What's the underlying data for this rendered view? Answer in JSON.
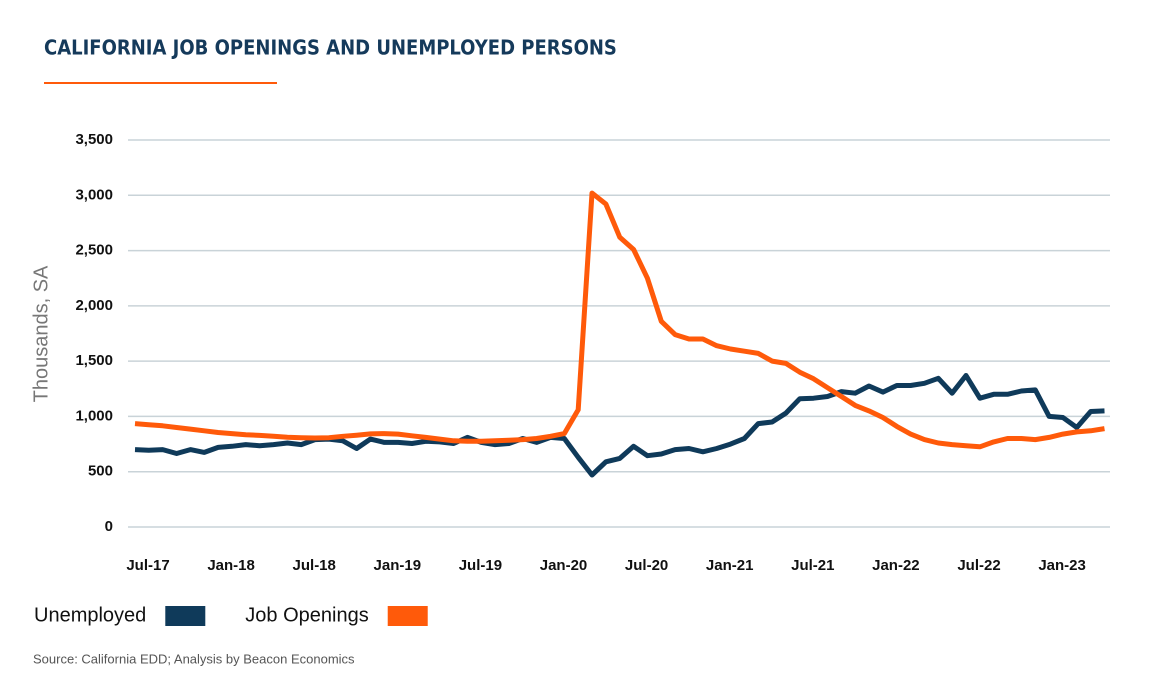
{
  "chart_data": {
    "type": "line",
    "title": "CALIFORNIA JOB OPENINGS AND UNEMPLOYED PERSONS",
    "y_label": "Thousands, SA",
    "source": "Source: California EDD; Analysis by Beacon Economics",
    "categories": [
      "Jul-17",
      null,
      null,
      null,
      null,
      null,
      "Jan-18",
      null,
      null,
      null,
      null,
      null,
      "Jul-18",
      null,
      null,
      null,
      null,
      null,
      "Jan-19",
      null,
      null,
      null,
      null,
      null,
      "Jul-19",
      null,
      null,
      null,
      null,
      null,
      "Jan-20",
      null,
      null,
      null,
      null,
      null,
      "Jul-20",
      null,
      null,
      null,
      null,
      null,
      "Jan-21",
      null,
      null,
      null,
      null,
      null,
      "Jul-21",
      null,
      null,
      null,
      null,
      null,
      "Jan-22",
      null,
      null,
      null,
      null,
      null,
      "Jul-22",
      null,
      null,
      null,
      null,
      null,
      "Jan-23",
      null,
      null,
      null,
      null
    ],
    "series": [
      {
        "name": "Unemployed",
        "color": "#0f3a5a",
        "values": [
          700,
          695,
          700,
          665,
          700,
          675,
          720,
          730,
          745,
          735,
          745,
          760,
          745,
          790,
          795,
          780,
          710,
          795,
          765,
          765,
          755,
          775,
          770,
          755,
          810,
          765,
          745,
          755,
          800,
          765,
          810,
          800,
          630,
          470,
          590,
          620,
          730,
          645,
          660,
          700,
          710,
          680,
          710,
          750,
          800,
          935,
          950,
          1030,
          1160,
          1165,
          1180,
          1225,
          1210,
          1275,
          1220,
          1280,
          1280,
          1300,
          1345,
          1210,
          1370,
          1165,
          1200,
          1200,
          1230,
          1240,
          1000,
          990,
          900,
          1045,
          1050
        ]
      },
      {
        "name": "Job Openings",
        "color": "#ff5a0a",
        "values": [
          935,
          925,
          915,
          900,
          885,
          870,
          855,
          845,
          835,
          828,
          820,
          812,
          808,
          805,
          808,
          820,
          830,
          842,
          845,
          840,
          825,
          810,
          795,
          780,
          775,
          775,
          780,
          785,
          790,
          800,
          820,
          845,
          1060,
          3020,
          2920,
          2620,
          2510,
          2250,
          1860,
          1740,
          1700,
          1700,
          1640,
          1610,
          1590,
          1570,
          1500,
          1480,
          1400,
          1340,
          1260,
          1180,
          1100,
          1050,
          990,
          910,
          840,
          790,
          760,
          745,
          735,
          725,
          770,
          800,
          800,
          790,
          810,
          840,
          860,
          870,
          890
        ]
      }
    ],
    "ylim": [
      0,
      3500
    ],
    "yticks": [
      0,
      500,
      {
        "value": 1000,
        "label": "1,000"
      },
      {
        "value": 1500,
        "label": "1,500"
      },
      {
        "value": 2000,
        "label": "2,000"
      },
      {
        "value": 2500,
        "label": "2,500"
      },
      {
        "value": 3000,
        "label": "3,000"
      },
      {
        "value": 3500,
        "label": "3,500"
      }
    ],
    "grid": true,
    "legend": "bottom-left"
  }
}
